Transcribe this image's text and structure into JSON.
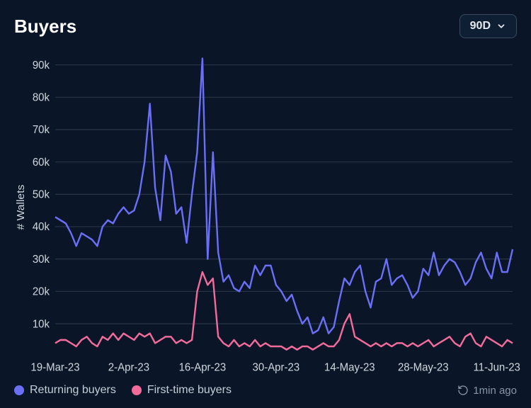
{
  "title": "Buyers",
  "range_selector": {
    "label": "90D"
  },
  "chart": {
    "type": "line",
    "background_color": "#0a1628",
    "grid_color": "#2a3849",
    "axis_text_color": "#d0d6de",
    "ylabel": "# Wallets",
    "ylim": [
      0,
      92000
    ],
    "yticks": [
      10000,
      20000,
      30000,
      40000,
      50000,
      60000,
      70000,
      80000,
      90000
    ],
    "ytick_labels": [
      "10k",
      "20k",
      "30k",
      "40k",
      "50k",
      "60k",
      "70k",
      "80k",
      "90k"
    ],
    "xticks_idx": [
      0,
      14,
      28,
      42,
      56,
      70,
      84
    ],
    "xtick_labels": [
      "19-Mar-23",
      "2-Apr-23",
      "16-Apr-23",
      "30-Apr-23",
      "14-May-23",
      "28-May-23",
      "11-Jun-23"
    ],
    "line_width": 2.4,
    "series": [
      {
        "name": "Returning buyers",
        "color": "#6b6ff5",
        "values": [
          43,
          42,
          41,
          38,
          34,
          38,
          37,
          36,
          34,
          40,
          42,
          41,
          44,
          46,
          44,
          45,
          50,
          60,
          78,
          52,
          42,
          62,
          57,
          44,
          46,
          35,
          50,
          63,
          92,
          30,
          63,
          32,
          23,
          25,
          21,
          20,
          23,
          21,
          28,
          25,
          28,
          28,
          22,
          20,
          17,
          19,
          14,
          10,
          12,
          7,
          8,
          12,
          7,
          9,
          17,
          24,
          22,
          26,
          28,
          20,
          15,
          23,
          24,
          30,
          22,
          24,
          25,
          22,
          18,
          20,
          27,
          25,
          32,
          25,
          28,
          30,
          29,
          26,
          22,
          24,
          29,
          32,
          27,
          24,
          32,
          26,
          26,
          33
        ]
      },
      {
        "name": "First-time buyers",
        "color": "#f26b9a",
        "values": [
          4,
          5,
          5,
          4,
          3,
          5,
          6,
          4,
          3,
          6,
          5,
          7,
          5,
          7,
          6,
          5,
          7,
          6,
          7,
          4,
          5,
          6,
          6,
          4,
          5,
          4,
          5,
          20,
          26,
          22,
          24,
          6,
          4,
          3,
          5,
          3,
          4,
          3,
          5,
          3,
          4,
          3,
          3,
          3,
          2,
          3,
          2,
          3,
          3,
          2,
          3,
          4,
          3,
          3,
          5,
          10,
          13,
          6,
          5,
          4,
          3,
          4,
          3,
          4,
          3,
          4,
          4,
          3,
          4,
          3,
          4,
          5,
          3,
          4,
          5,
          6,
          4,
          3,
          6,
          7,
          4,
          3,
          6,
          5,
          4,
          3,
          5,
          4
        ]
      }
    ]
  },
  "legend": [
    {
      "label": "Returning buyers",
      "color": "#6b6ff5"
    },
    {
      "label": "First-time buyers",
      "color": "#f26b9a"
    }
  ],
  "timestamp": "1min ago"
}
